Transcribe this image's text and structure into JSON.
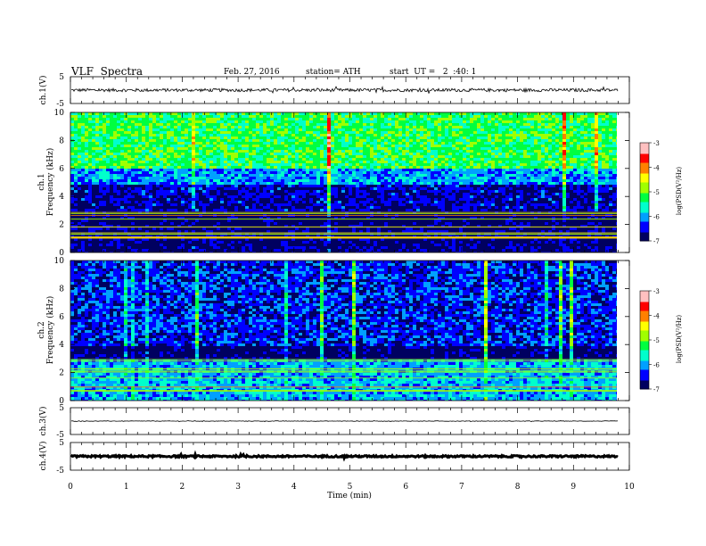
{
  "header": {
    "title": "VLF  Spectra",
    "date": "Feb. 27, 2016",
    "station": "station= ATH",
    "start": "start  UT =   2  :40: 1"
  },
  "chart_data": [
    {
      "type": "line",
      "panel": "ch1-waveform",
      "ylabel": "ch.1(V)",
      "ylim": [
        -5,
        5
      ],
      "yticks": [
        "5",
        "-5"
      ],
      "series": [
        {
          "trace_level": 0.0,
          "amplitude": 0.6
        }
      ]
    },
    {
      "type": "heatmap",
      "panel": "ch1-spectrogram",
      "ylabel": "ch.1\nFrequency  (kHz)",
      "ylabel_line1": "ch.1",
      "ylabel_line2": "Frequency  (kHz)",
      "ylim": [
        0,
        10
      ],
      "yticks": [
        "0",
        "2",
        "4",
        "6",
        "8",
        "10"
      ],
      "colorbar": {
        "label": "log(PSD(V²/Hz)",
        "ticks": [
          "-3",
          "-4",
          "-5",
          "-6",
          "-7"
        ],
        "range": [
          -7,
          -3
        ]
      },
      "bands": [
        {
          "from": 6.0,
          "to": 10.0,
          "level": -5.2
        },
        {
          "from": 5.0,
          "to": 6.0,
          "level": -6.0
        },
        {
          "from": 3.0,
          "to": 5.0,
          "level": -6.6
        },
        {
          "from": 2.0,
          "to": 3.0,
          "level": -6.9
        },
        {
          "from": 0.0,
          "to": 2.0,
          "level": -6.8
        }
      ]
    },
    {
      "type": "heatmap",
      "panel": "ch2-spectrogram",
      "ylabel_line1": "ch.2",
      "ylabel_line2": "Frequency  (kHz)",
      "ylim": [
        0,
        10
      ],
      "yticks": [
        "0",
        "2",
        "4",
        "6",
        "8",
        "10"
      ],
      "colorbar": {
        "label": "log(PSD(V²/Hz)",
        "ticks": [
          "-3",
          "-4",
          "-5",
          "-6",
          "-7"
        ],
        "range": [
          -7,
          -3
        ]
      },
      "bands": [
        {
          "from": 4.0,
          "to": 10.0,
          "level": -6.4
        },
        {
          "from": 3.0,
          "to": 4.0,
          "level": -6.9
        },
        {
          "from": 0.0,
          "to": 3.0,
          "level": -5.9
        }
      ]
    },
    {
      "type": "line",
      "panel": "ch3-waveform",
      "ylabel": "ch.3(V)",
      "ylim": [
        -5,
        5
      ],
      "yticks": [
        "5",
        "-5"
      ],
      "series": [
        {
          "trace_level": 0.0,
          "amplitude": 0.1
        }
      ]
    },
    {
      "type": "line",
      "panel": "ch4-waveform",
      "ylabel": "ch.4(V)",
      "ylim": [
        -5,
        5
      ],
      "yticks": [
        "5",
        "-5"
      ],
      "series": [
        {
          "trace_level": 0.0,
          "amplitude": 0.3
        }
      ]
    }
  ],
  "x_axis": {
    "label": "Time  (min)",
    "range": [
      0,
      10
    ],
    "ticks": [
      "0",
      "1",
      "2",
      "3",
      "4",
      "5",
      "6",
      "7",
      "8",
      "9",
      "10"
    ],
    "data_end": 9.8
  },
  "colormap": [
    "#000060",
    "#0000ff",
    "#00a0ff",
    "#00ffcc",
    "#00ff40",
    "#a0ff00",
    "#ffff00",
    "#ff8000",
    "#ff0000",
    "#ffc0c0"
  ]
}
